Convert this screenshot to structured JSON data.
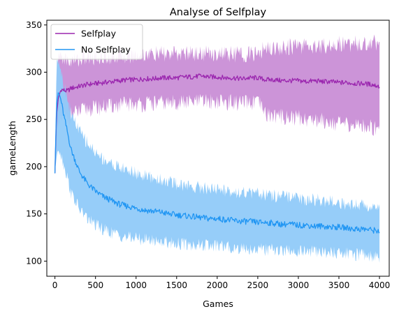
{
  "chart_data": {
    "type": "line",
    "title": "Analyse of Selfplay",
    "xlabel": "Games",
    "ylabel": "gameLength",
    "xlim": [
      -100,
      4120
    ],
    "ylim": [
      84,
      355
    ],
    "xticks": [
      0,
      500,
      1000,
      1500,
      2000,
      2500,
      3000,
      3500,
      4000
    ],
    "yticks": [
      100,
      150,
      200,
      250,
      300,
      350
    ],
    "grid": false,
    "legend_position": "top-left",
    "series": [
      {
        "name": "Selfplay",
        "line_color": "#9b27af",
        "band_color": "#c98ed6",
        "x": [
          0,
          20,
          40,
          60,
          80,
          100,
          150,
          200,
          300,
          400,
          500,
          600,
          700,
          800,
          900,
          1000,
          1100,
          1200,
          1300,
          1400,
          1500,
          1600,
          1700,
          1800,
          1900,
          2000,
          2100,
          2200,
          2300,
          2400,
          2500,
          2600,
          2700,
          2800,
          2900,
          3000,
          3100,
          3200,
          3300,
          3400,
          3500,
          3600,
          3700,
          3800,
          3900,
          4000
        ],
        "mean": [
          193,
          255,
          270,
          278,
          282,
          281,
          280,
          283,
          285,
          287,
          288,
          289,
          290,
          291,
          292,
          292,
          293,
          293,
          294,
          294,
          294,
          295,
          295,
          296,
          295,
          295,
          294,
          294,
          293,
          294,
          294,
          292,
          292,
          291,
          291,
          291,
          290,
          291,
          290,
          290,
          289,
          289,
          288,
          288,
          287,
          285
        ],
        "lower": [
          193,
          225,
          240,
          245,
          250,
          252,
          250,
          255,
          258,
          261,
          262,
          263,
          264,
          265,
          266,
          266,
          266,
          267,
          267,
          267,
          268,
          268,
          268,
          269,
          269,
          269,
          268,
          268,
          267,
          267,
          268,
          255,
          254,
          253,
          252,
          252,
          250,
          250,
          249,
          248,
          245,
          244,
          244,
          243,
          242,
          240
        ],
        "upper": [
          193,
          300,
          312,
          318,
          318,
          316,
          312,
          312,
          314,
          315,
          316,
          316,
          317,
          318,
          318,
          318,
          319,
          319,
          319,
          319,
          319,
          320,
          320,
          320,
          320,
          320,
          319,
          319,
          319,
          319,
          319,
          326,
          326,
          326,
          327,
          327,
          328,
          328,
          328,
          329,
          330,
          330,
          330,
          330,
          331,
          332
        ]
      },
      {
        "name": "No Selfplay",
        "line_color": "#2196f3",
        "band_color": "#90caf9",
        "x": [
          0,
          20,
          40,
          60,
          80,
          100,
          150,
          200,
          300,
          400,
          500,
          600,
          700,
          800,
          900,
          1000,
          1100,
          1200,
          1300,
          1400,
          1500,
          1600,
          1700,
          1800,
          1900,
          2000,
          2100,
          2200,
          2300,
          2400,
          2500,
          2600,
          2700,
          2800,
          2900,
          3000,
          3100,
          3200,
          3300,
          3400,
          3500,
          3600,
          3700,
          3800,
          3900,
          4000
        ],
        "mean": [
          193,
          265,
          278,
          275,
          268,
          258,
          238,
          218,
          195,
          182,
          174,
          168,
          164,
          160,
          158,
          156,
          154,
          153,
          152,
          150,
          149,
          148,
          147,
          146,
          145,
          145,
          144,
          143,
          142,
          142,
          141,
          141,
          140,
          139,
          139,
          138,
          138,
          137,
          137,
          136,
          136,
          135,
          134,
          134,
          133,
          132
        ],
        "lower": [
          193,
          210,
          220,
          218,
          212,
          205,
          190,
          172,
          155,
          145,
          138,
          133,
          130,
          127,
          125,
          124,
          123,
          122,
          121,
          120,
          119,
          118,
          117,
          117,
          116,
          116,
          115,
          114,
          114,
          113,
          113,
          112,
          112,
          111,
          111,
          110,
          110,
          110,
          109,
          109,
          108,
          108,
          107,
          107,
          106,
          105
        ],
        "upper": [
          193,
          312,
          314,
          310,
          300,
          290,
          275,
          255,
          238,
          225,
          215,
          208,
          203,
          199,
          196,
          193,
          190,
          188,
          186,
          184,
          182,
          180,
          179,
          178,
          177,
          176,
          175,
          174,
          173,
          172,
          171,
          170,
          169,
          168,
          167,
          166,
          165,
          165,
          164,
          163,
          162,
          161,
          160,
          160,
          159,
          158
        ]
      }
    ]
  }
}
